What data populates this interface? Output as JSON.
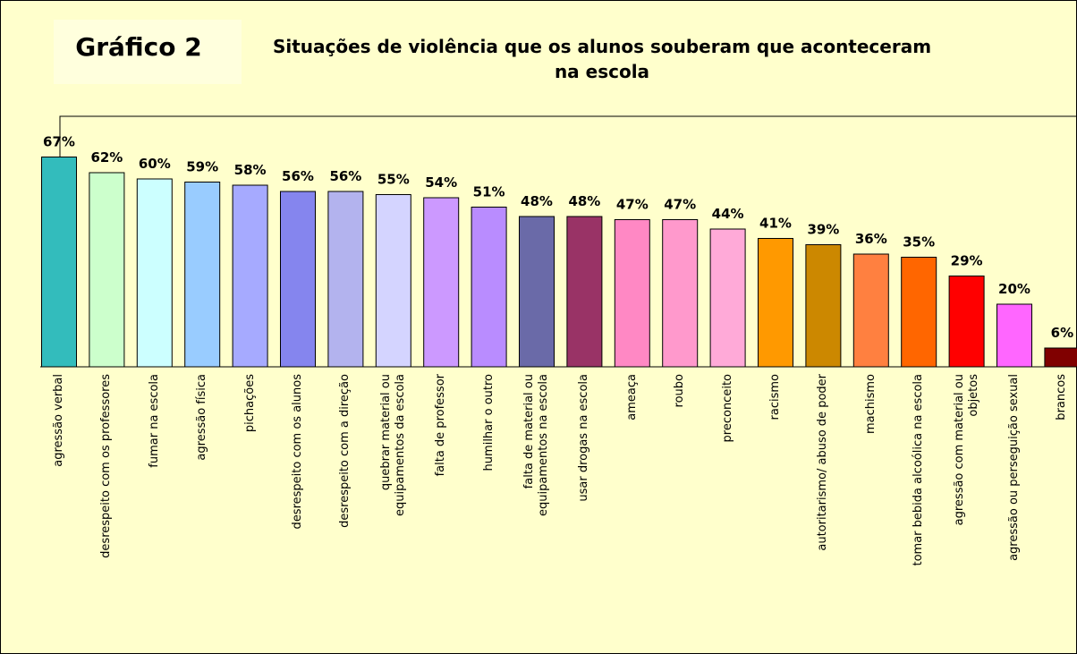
{
  "chart_data": {
    "type": "bar",
    "label": "Gráfico 2",
    "title": "Situações de violência que os alunos souberam que aconteceram\nna escola",
    "categories": [
      "agressão verbal",
      "desrespeito com os professores",
      "fumar na escola",
      "agressão física",
      "pichações",
      "desrespeito com os alunos",
      "desrespeito com a direção",
      "quebrar material ou\nequipamentos da escola",
      "falta de professor",
      "humilhar o outro",
      "falta de material ou\nequipamentos na escola",
      "usar drogas na escola",
      "ameaça",
      "roubo",
      "preconceito",
      "racismo",
      "autoritarismo/ abuso de poder",
      "machismo",
      "tomar bebida alcoólica na escola",
      "agressão com material ou\nobjetos",
      "agressão ou perseguição sexual",
      "brancos"
    ],
    "values": [
      67,
      62,
      60,
      59,
      58,
      56,
      56,
      55,
      54,
      51,
      48,
      48,
      47,
      47,
      44,
      41,
      39,
      36,
      35,
      29,
      20,
      6
    ],
    "value_labels": [
      "67%",
      "62%",
      "60%",
      "59%",
      "58%",
      "56%",
      "56%",
      "55%",
      "54%",
      "51%",
      "48%",
      "48%",
      "47%",
      "47%",
      "44%",
      "41%",
      "39%",
      "36%",
      "35%",
      "29%",
      "20%",
      "6%"
    ],
    "colors": [
      "#33bcbc",
      "#ccffcc",
      "#ccffff",
      "#99ccff",
      "#a6aaff",
      "#8585ee",
      "#b3b3ee",
      "#d4d4ff",
      "#cc99ff",
      "#b98cff",
      "#6a6aa8",
      "#993366",
      "#ff88c4",
      "#ff99cc",
      "#ffaad8",
      "#ff9900",
      "#cc8800",
      "#ff8040",
      "#ff6600",
      "#ff0000",
      "#ff66ff",
      "#800000"
    ],
    "ylim": [
      0,
      80
    ]
  }
}
